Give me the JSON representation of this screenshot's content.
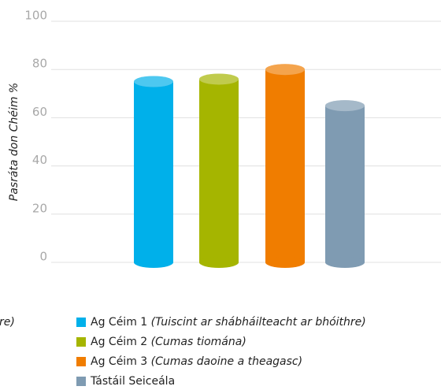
{
  "chart_data": {
    "type": "cylinder-bar",
    "y_label": "Pasráta don Chéim %",
    "annotation": "re)",
    "ylim": [
      0,
      100
    ],
    "yticks": [
      0,
      20,
      40,
      60,
      80,
      100
    ],
    "grid": true,
    "series": [
      {
        "name": "Ag Céim 1",
        "description": "(Tuiscint ar shábháilteacht ar bhóithre)",
        "color": "#00b0ea",
        "values": [
          75
        ]
      },
      {
        "name": "Ag Céim 2",
        "description": "(Cumas tiomána)",
        "color": "#a5b500",
        "values": [
          76
        ]
      },
      {
        "name": "Ag Céim 3",
        "description": "(Cumas daoine a theagasc)",
        "color": "#f07d00",
        "values": [
          80
        ]
      },
      {
        "name": "Tástáil Seiceála",
        "color": "#7f9bb2",
        "values": [
          65
        ]
      }
    ]
  }
}
